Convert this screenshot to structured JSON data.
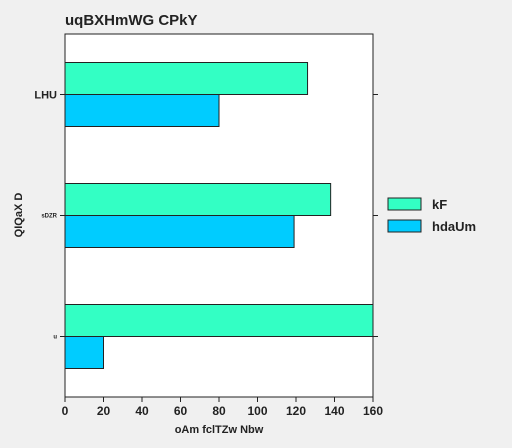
{
  "chart_data": {
    "type": "bar",
    "orientation": "horizontal",
    "title": "uqBXHmWG CPkY",
    "xlabel": "oAm fclTZw Nbw",
    "ylabel": "QIQaX D",
    "categories": [
      "LHU",
      "sDZR",
      "u"
    ],
    "category_font_sizes": [
      11,
      6,
      6
    ],
    "series": [
      {
        "name": "kF",
        "color": "#33ffc4",
        "values": [
          126,
          138,
          160
        ]
      },
      {
        "name": "hdaUm",
        "color": "#00ccff",
        "values": [
          80,
          119,
          20
        ]
      }
    ],
    "xlim": [
      0,
      160
    ],
    "xticks": [
      0,
      20,
      40,
      60,
      80,
      100,
      120,
      140,
      160
    ],
    "grid": false,
    "legend_position": "right"
  }
}
